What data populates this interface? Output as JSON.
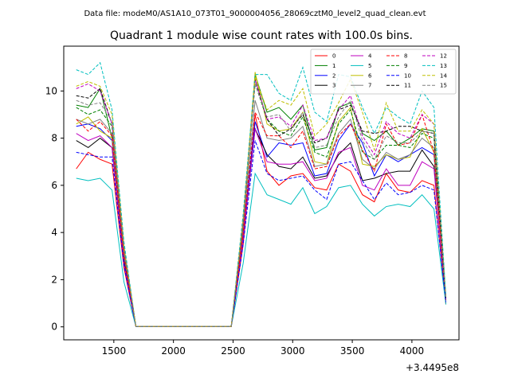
{
  "header": {
    "data_file": "Data file: modeM0/AS1A10_073T01_9000004056_28069cztM0_level2_quad_clean.evt"
  },
  "chart_data": {
    "type": "line",
    "title": "Quadrant 1 module wise count rates with 100.0s bins.",
    "xlabel": "",
    "ylabel": "",
    "x_offset_label": "+3.4495e8",
    "xlim": [
      1080,
      4395
    ],
    "ylim": [
      -0.55,
      11.9
    ],
    "xticks": [
      1500,
      2000,
      2500,
      3000,
      3500,
      4000
    ],
    "yticks": [
      0,
      2,
      4,
      6,
      8,
      10
    ],
    "grid": false,
    "legend": {
      "placement": "top-right",
      "columns": 4
    },
    "x": [
      1185,
      1285,
      1385,
      1485,
      1585,
      1685,
      1785,
      1885,
      1985,
      2085,
      2185,
      2285,
      2385,
      2485,
      2585,
      2685,
      2785,
      2885,
      2985,
      3085,
      3185,
      3285,
      3385,
      3485,
      3585,
      3685,
      3785,
      3885,
      3985,
      4085,
      4185,
      4285
    ],
    "series": [
      {
        "name": "0",
        "color": "#ff0000",
        "dash": "solid",
        "values": [
          6.7,
          7.4,
          7.1,
          6.9,
          2.5,
          0.02,
          0.02,
          0.02,
          0.02,
          0.02,
          0.02,
          0.02,
          0.02,
          0.02,
          3.5,
          9.0,
          6.6,
          6.0,
          6.4,
          6.5,
          5.9,
          5.8,
          6.9,
          6.6,
          5.6,
          5.3,
          6.5,
          5.8,
          5.7,
          6.2,
          6.0,
          0.95
        ]
      },
      {
        "name": "1",
        "color": "#008000",
        "dash": "solid",
        "values": [
          9.4,
          9.3,
          10.1,
          8.0,
          3.3,
          0.02,
          0.02,
          0.02,
          0.02,
          0.02,
          0.02,
          0.02,
          0.02,
          0.02,
          4.4,
          10.7,
          9.1,
          9.3,
          8.8,
          9.4,
          7.5,
          7.6,
          9.3,
          9.5,
          8.2,
          7.9,
          8.3,
          7.7,
          8.0,
          8.4,
          8.3,
          1.2
        ]
      },
      {
        "name": "2",
        "color": "#0000ff",
        "dash": "solid",
        "values": [
          8.5,
          8.6,
          8.4,
          7.9,
          3.0,
          0.02,
          0.02,
          0.02,
          0.02,
          0.02,
          0.02,
          0.02,
          0.02,
          0.02,
          4.0,
          8.7,
          7.2,
          7.8,
          7.7,
          7.8,
          6.4,
          6.5,
          7.9,
          8.6,
          7.8,
          6.4,
          7.3,
          7.0,
          7.3,
          7.6,
          7.3,
          1.15
        ]
      },
      {
        "name": "3",
        "color": "#000000",
        "dash": "solid",
        "values": [
          7.9,
          7.6,
          8.0,
          7.6,
          2.8,
          0.02,
          0.02,
          0.02,
          0.02,
          0.02,
          0.02,
          0.02,
          0.02,
          0.02,
          3.8,
          8.4,
          7.3,
          6.8,
          6.7,
          7.2,
          6.3,
          6.4,
          7.3,
          7.8,
          6.2,
          6.3,
          6.5,
          6.6,
          6.6,
          7.5,
          6.8,
          1.1
        ]
      },
      {
        "name": "4",
        "color": "#bf00bf",
        "dash": "solid",
        "values": [
          8.2,
          7.9,
          8.1,
          7.6,
          2.7,
          0.02,
          0.02,
          0.02,
          0.02,
          0.02,
          0.02,
          0.02,
          0.02,
          0.02,
          3.8,
          8.4,
          7.0,
          6.9,
          6.9,
          7.0,
          6.2,
          6.3,
          7.4,
          7.6,
          6.0,
          5.8,
          6.7,
          6.0,
          6.0,
          7.0,
          6.7,
          1.1
        ]
      },
      {
        "name": "5",
        "color": "#00bfbf",
        "dash": "solid",
        "values": [
          6.3,
          6.2,
          6.3,
          5.8,
          1.9,
          0.02,
          0.02,
          0.02,
          0.02,
          0.02,
          0.02,
          0.02,
          0.02,
          0.02,
          2.7,
          6.5,
          5.6,
          5.4,
          5.2,
          5.9,
          4.8,
          5.1,
          5.9,
          6.0,
          5.2,
          4.7,
          5.1,
          5.2,
          5.1,
          5.6,
          5.0,
          0.95
        ]
      },
      {
        "name": "6",
        "color": "#bfbf00",
        "dash": "solid",
        "values": [
          8.6,
          8.9,
          8.3,
          8.0,
          3.1,
          0.02,
          0.02,
          0.02,
          0.02,
          0.02,
          0.02,
          0.02,
          0.02,
          0.02,
          4.2,
          10.8,
          8.6,
          8.3,
          8.4,
          9.1,
          7.0,
          6.9,
          8.7,
          9.3,
          6.9,
          6.8,
          7.3,
          7.1,
          7.2,
          8.4,
          7.4,
          1.15
        ]
      },
      {
        "name": "7",
        "color": "#808080",
        "dash": "solid",
        "values": [
          8.8,
          8.6,
          8.8,
          8.2,
          3.2,
          0.02,
          0.02,
          0.02,
          0.02,
          0.02,
          0.02,
          0.02,
          0.02,
          0.02,
          4.2,
          9.6,
          8.0,
          7.9,
          8.0,
          8.5,
          6.8,
          6.9,
          8.2,
          8.8,
          7.1,
          6.7,
          7.4,
          7.1,
          7.3,
          8.0,
          7.6,
          1.15
        ]
      },
      {
        "name": "8",
        "color": "#ff0000",
        "dash": "dashed",
        "values": [
          8.8,
          8.3,
          8.7,
          8.1,
          3.0,
          0.02,
          0.02,
          0.02,
          0.02,
          0.02,
          0.02,
          0.02,
          0.02,
          0.02,
          4.0,
          9.1,
          8.1,
          8.1,
          7.6,
          8.3,
          6.7,
          6.8,
          8.1,
          8.6,
          7.5,
          6.6,
          8.6,
          7.7,
          7.8,
          9.0,
          7.4,
          1.15
        ]
      },
      {
        "name": "9",
        "color": "#008000",
        "dash": "dashed",
        "values": [
          9.3,
          9.0,
          9.2,
          8.5,
          3.3,
          0.02,
          0.02,
          0.02,
          0.02,
          0.02,
          0.02,
          0.02,
          0.02,
          0.02,
          4.4,
          10.3,
          8.8,
          8.3,
          8.1,
          8.9,
          7.4,
          7.2,
          8.6,
          9.2,
          7.4,
          7.1,
          7.7,
          7.7,
          7.6,
          8.2,
          8.0,
          1.2
        ]
      },
      {
        "name": "10",
        "color": "#0000ff",
        "dash": "dashed",
        "values": [
          7.4,
          7.3,
          7.2,
          7.2,
          2.6,
          0.02,
          0.02,
          0.02,
          0.02,
          0.02,
          0.02,
          0.02,
          0.02,
          0.02,
          3.5,
          7.9,
          6.5,
          6.2,
          6.3,
          6.4,
          5.8,
          5.4,
          6.9,
          7.0,
          6.2,
          5.4,
          6.1,
          5.6,
          5.7,
          6.0,
          5.8,
          1.05
        ]
      },
      {
        "name": "11",
        "color": "#000000",
        "dash": "dashed",
        "values": [
          9.8,
          9.7,
          10.1,
          8.6,
          3.4,
          0.02,
          0.02,
          0.02,
          0.02,
          0.02,
          0.02,
          0.02,
          0.02,
          0.02,
          4.5,
          10.5,
          8.8,
          8.1,
          8.4,
          9.0,
          7.8,
          8.0,
          9.2,
          9.4,
          8.3,
          8.2,
          8.3,
          8.5,
          8.5,
          8.3,
          8.2,
          1.2
        ]
      },
      {
        "name": "12",
        "color": "#bf00bf",
        "dash": "dashed",
        "values": [
          10.1,
          10.3,
          10.0,
          8.6,
          3.4,
          0.02,
          0.02,
          0.02,
          0.02,
          0.02,
          0.02,
          0.02,
          0.02,
          0.02,
          4.5,
          10.5,
          8.8,
          8.9,
          8.5,
          9.4,
          7.9,
          8.0,
          9.2,
          9.8,
          8.1,
          7.3,
          8.7,
          8.2,
          8.0,
          9.0,
          8.6,
          1.2
        ]
      },
      {
        "name": "13",
        "color": "#00bfbf",
        "dash": "dashed",
        "values": [
          10.9,
          10.7,
          11.2,
          9.2,
          3.6,
          0.02,
          0.02,
          0.02,
          0.02,
          0.02,
          0.02,
          0.02,
          0.02,
          0.02,
          4.8,
          10.7,
          10.7,
          9.9,
          9.6,
          11.0,
          9.1,
          8.7,
          10.7,
          10.6,
          9.3,
          8.2,
          9.3,
          8.9,
          8.6,
          10.0,
          9.3,
          1.3
        ]
      },
      {
        "name": "14",
        "color": "#bfbf00",
        "dash": "dashed",
        "values": [
          10.2,
          10.4,
          10.2,
          9.0,
          3.4,
          0.02,
          0.02,
          0.02,
          0.02,
          0.02,
          0.02,
          0.02,
          0.02,
          0.02,
          4.6,
          10.6,
          9.2,
          9.6,
          9.4,
          10.1,
          8.1,
          8.6,
          9.5,
          10.5,
          9.1,
          7.5,
          9.5,
          8.3,
          8.3,
          9.2,
          8.6,
          1.25
        ]
      },
      {
        "name": "15",
        "color": "#808080",
        "dash": "dashed",
        "values": [
          9.6,
          9.4,
          9.5,
          8.7,
          3.3,
          0.02,
          0.02,
          0.02,
          0.02,
          0.02,
          0.02,
          0.02,
          0.02,
          0.02,
          4.5,
          10.3,
          8.9,
          9.0,
          8.3,
          9.1,
          7.6,
          7.7,
          8.9,
          9.6,
          7.9,
          7.1,
          8.1,
          7.8,
          7.8,
          8.3,
          8.2,
          1.2
        ]
      }
    ]
  }
}
